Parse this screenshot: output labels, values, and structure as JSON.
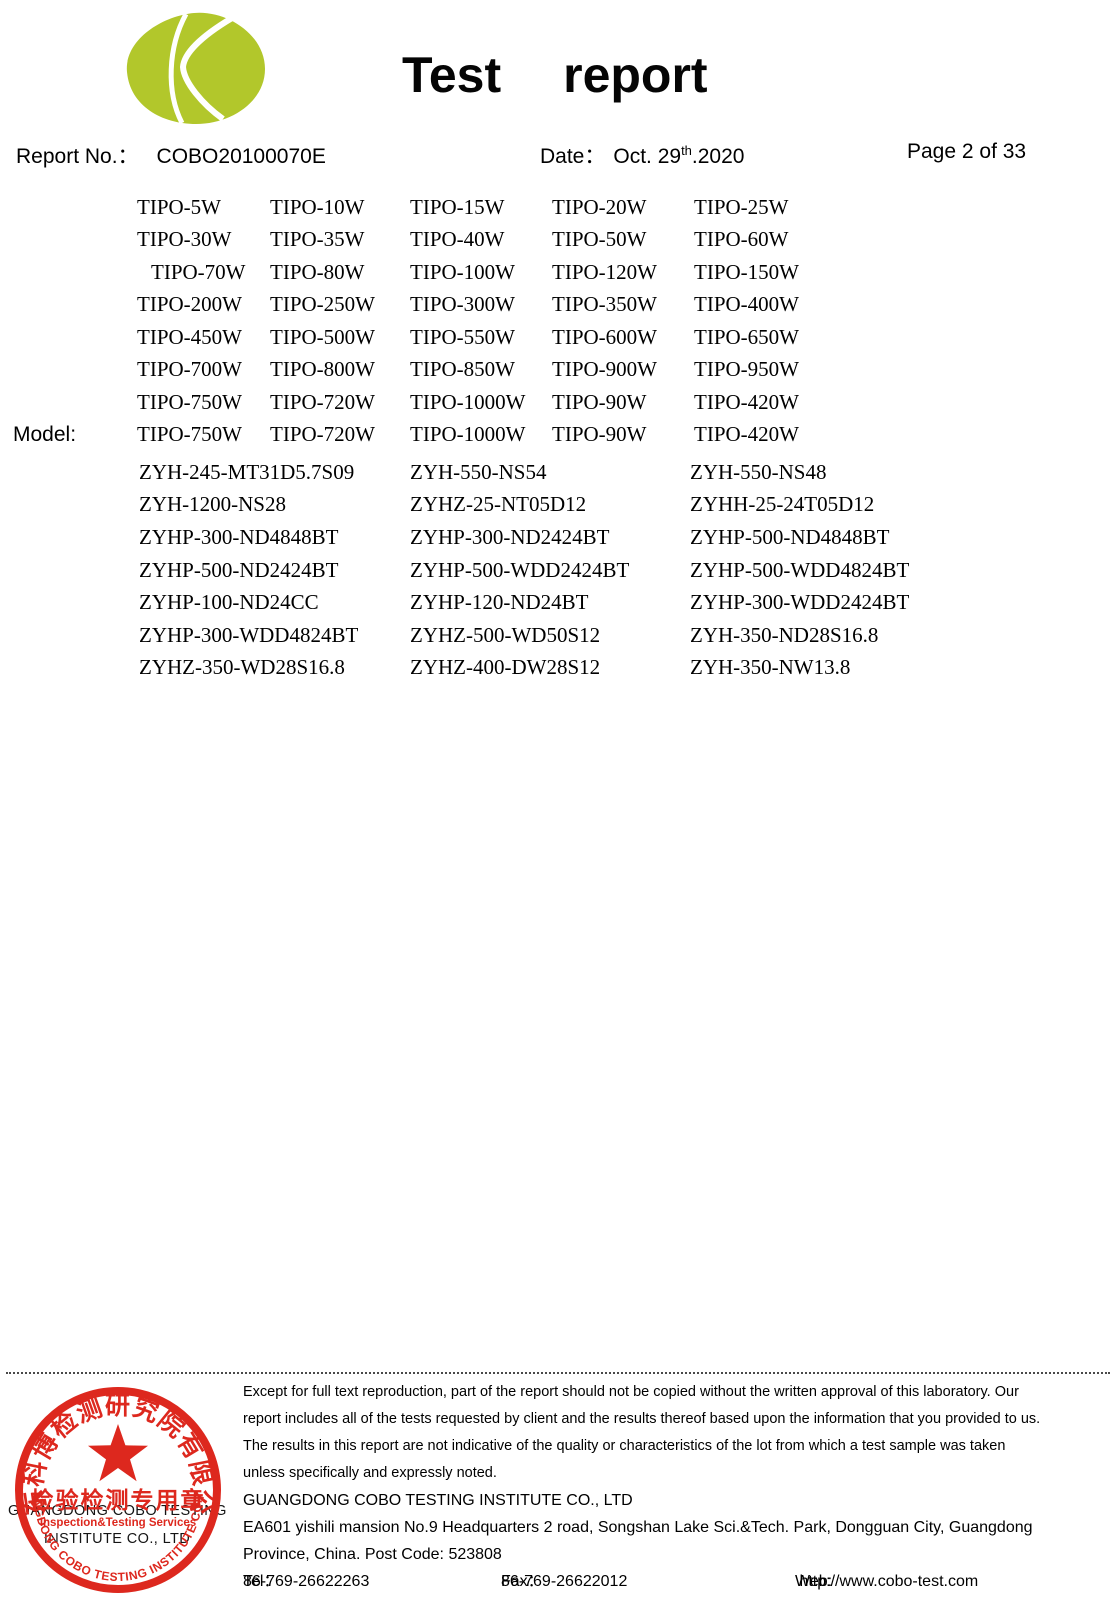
{
  "header": {
    "logo_color": "#b2c72b",
    "title_word1": "Test",
    "title_word2": "report",
    "report_no_label": "Report No.：",
    "report_no": "COBO20100070E",
    "date_label": "Date：",
    "date_prefix": "Oct. 29",
    "date_sup": "th",
    "date_suffix": ".2020",
    "page_indicator": "Page 2 of 33"
  },
  "model_section": {
    "label": "Model:",
    "tipo_rows": [
      [
        "TIPO-5W",
        "TIPO-10W",
        "TIPO-15W",
        "TIPO-20W",
        "TIPO-25W"
      ],
      [
        "TIPO-30W",
        "TIPO-35W",
        "TIPO-40W",
        "TIPO-50W",
        "TIPO-60W"
      ],
      [
        "TIPO-70W",
        "TIPO-80W",
        "TIPO-100W",
        "TIPO-120W",
        "TIPO-150W"
      ],
      [
        "TIPO-200W",
        "TIPO-250W",
        "TIPO-300W",
        "TIPO-350W",
        "TIPO-400W"
      ],
      [
        "TIPO-450W",
        "TIPO-500W",
        "TIPO-550W",
        "TIPO-600W",
        "TIPO-650W"
      ],
      [
        "TIPO-700W",
        "TIPO-800W",
        "TIPO-850W",
        "TIPO-900W",
        "TIPO-950W"
      ],
      [
        "TIPO-750W",
        "TIPO-720W",
        "TIPO-1000W",
        "TIPO-90W",
        "TIPO-420W"
      ],
      [
        "TIPO-750W",
        "TIPO-720W",
        "TIPO-1000W",
        "TIPO-90W",
        "TIPO-420W"
      ]
    ],
    "zyh_rows": [
      [
        "ZYH-245-MT31D5.7S09",
        "ZYH-550-NS54",
        "ZYH-550-NS48"
      ],
      [
        "ZYH-1200-NS28",
        "ZYHZ-25-NT05D12",
        "ZYHH-25-24T05D12"
      ],
      [
        "ZYHP-300-ND4848BT",
        "ZYHP-300-ND2424BT",
        "ZYHP-500-ND4848BT"
      ],
      [
        "ZYHP-500-ND2424BT",
        "ZYHP-500-WDD2424BT",
        "ZYHP-500-WDD4824BT"
      ],
      [
        "ZYHP-100-ND24CC",
        "ZYHP-120-ND24BT",
        "ZYHP-300-WDD2424BT"
      ],
      [
        "ZYHP-300-WDD4824BT",
        "ZYHZ-500-WD50S12",
        "ZYH-350-ND28S16.8"
      ],
      [
        "ZYHZ-350-WD28S16.8",
        "ZYHZ-400-DW28S12",
        "ZYH-350-NW13.8"
      ]
    ]
  },
  "footer": {
    "disclaimer_lines": [
      "Except for full text reproduction, part of the report should not be copied without the written approval of this laboratory. Our",
      "report includes all of the tests requested by client and the results thereof based upon the information that you provided to us.",
      "The results in this report are not indicative of the quality or characteristics of the lot from which a test sample was taken",
      "unless specifically and expressly noted."
    ],
    "company": "GUANGDONG COBO TESTING INSTITUTE CO., LTD",
    "address_line1": "EA601 yishili mansion No.9 Headquarters 2 road, Songshan Lake Sci.&Tech. Park, Dongguan City, Guangdong",
    "address_line2": "Province, China. Post Code: 523808",
    "tel_label": "Tel：",
    "tel": "86-769-26622263",
    "fax_label": "Fax：",
    "fax": "86-769-26622012",
    "web_label": "Web:",
    "web": "http://www.cobo-test.com"
  },
  "stamp": {
    "color": "#dd281e",
    "chinese_arc": "广东科博检测研究院有限公司",
    "chinese_center": "检验检测专用章",
    "english_sub": "Inspection&Testing Services",
    "english_arc": "GUANGDONG COBO TESTING INSTITUTE CO.,LTD",
    "overlay_line1": "GUANGDONG COBO TESTING",
    "overlay_line2": "INSTITUTE CO., LTD"
  }
}
